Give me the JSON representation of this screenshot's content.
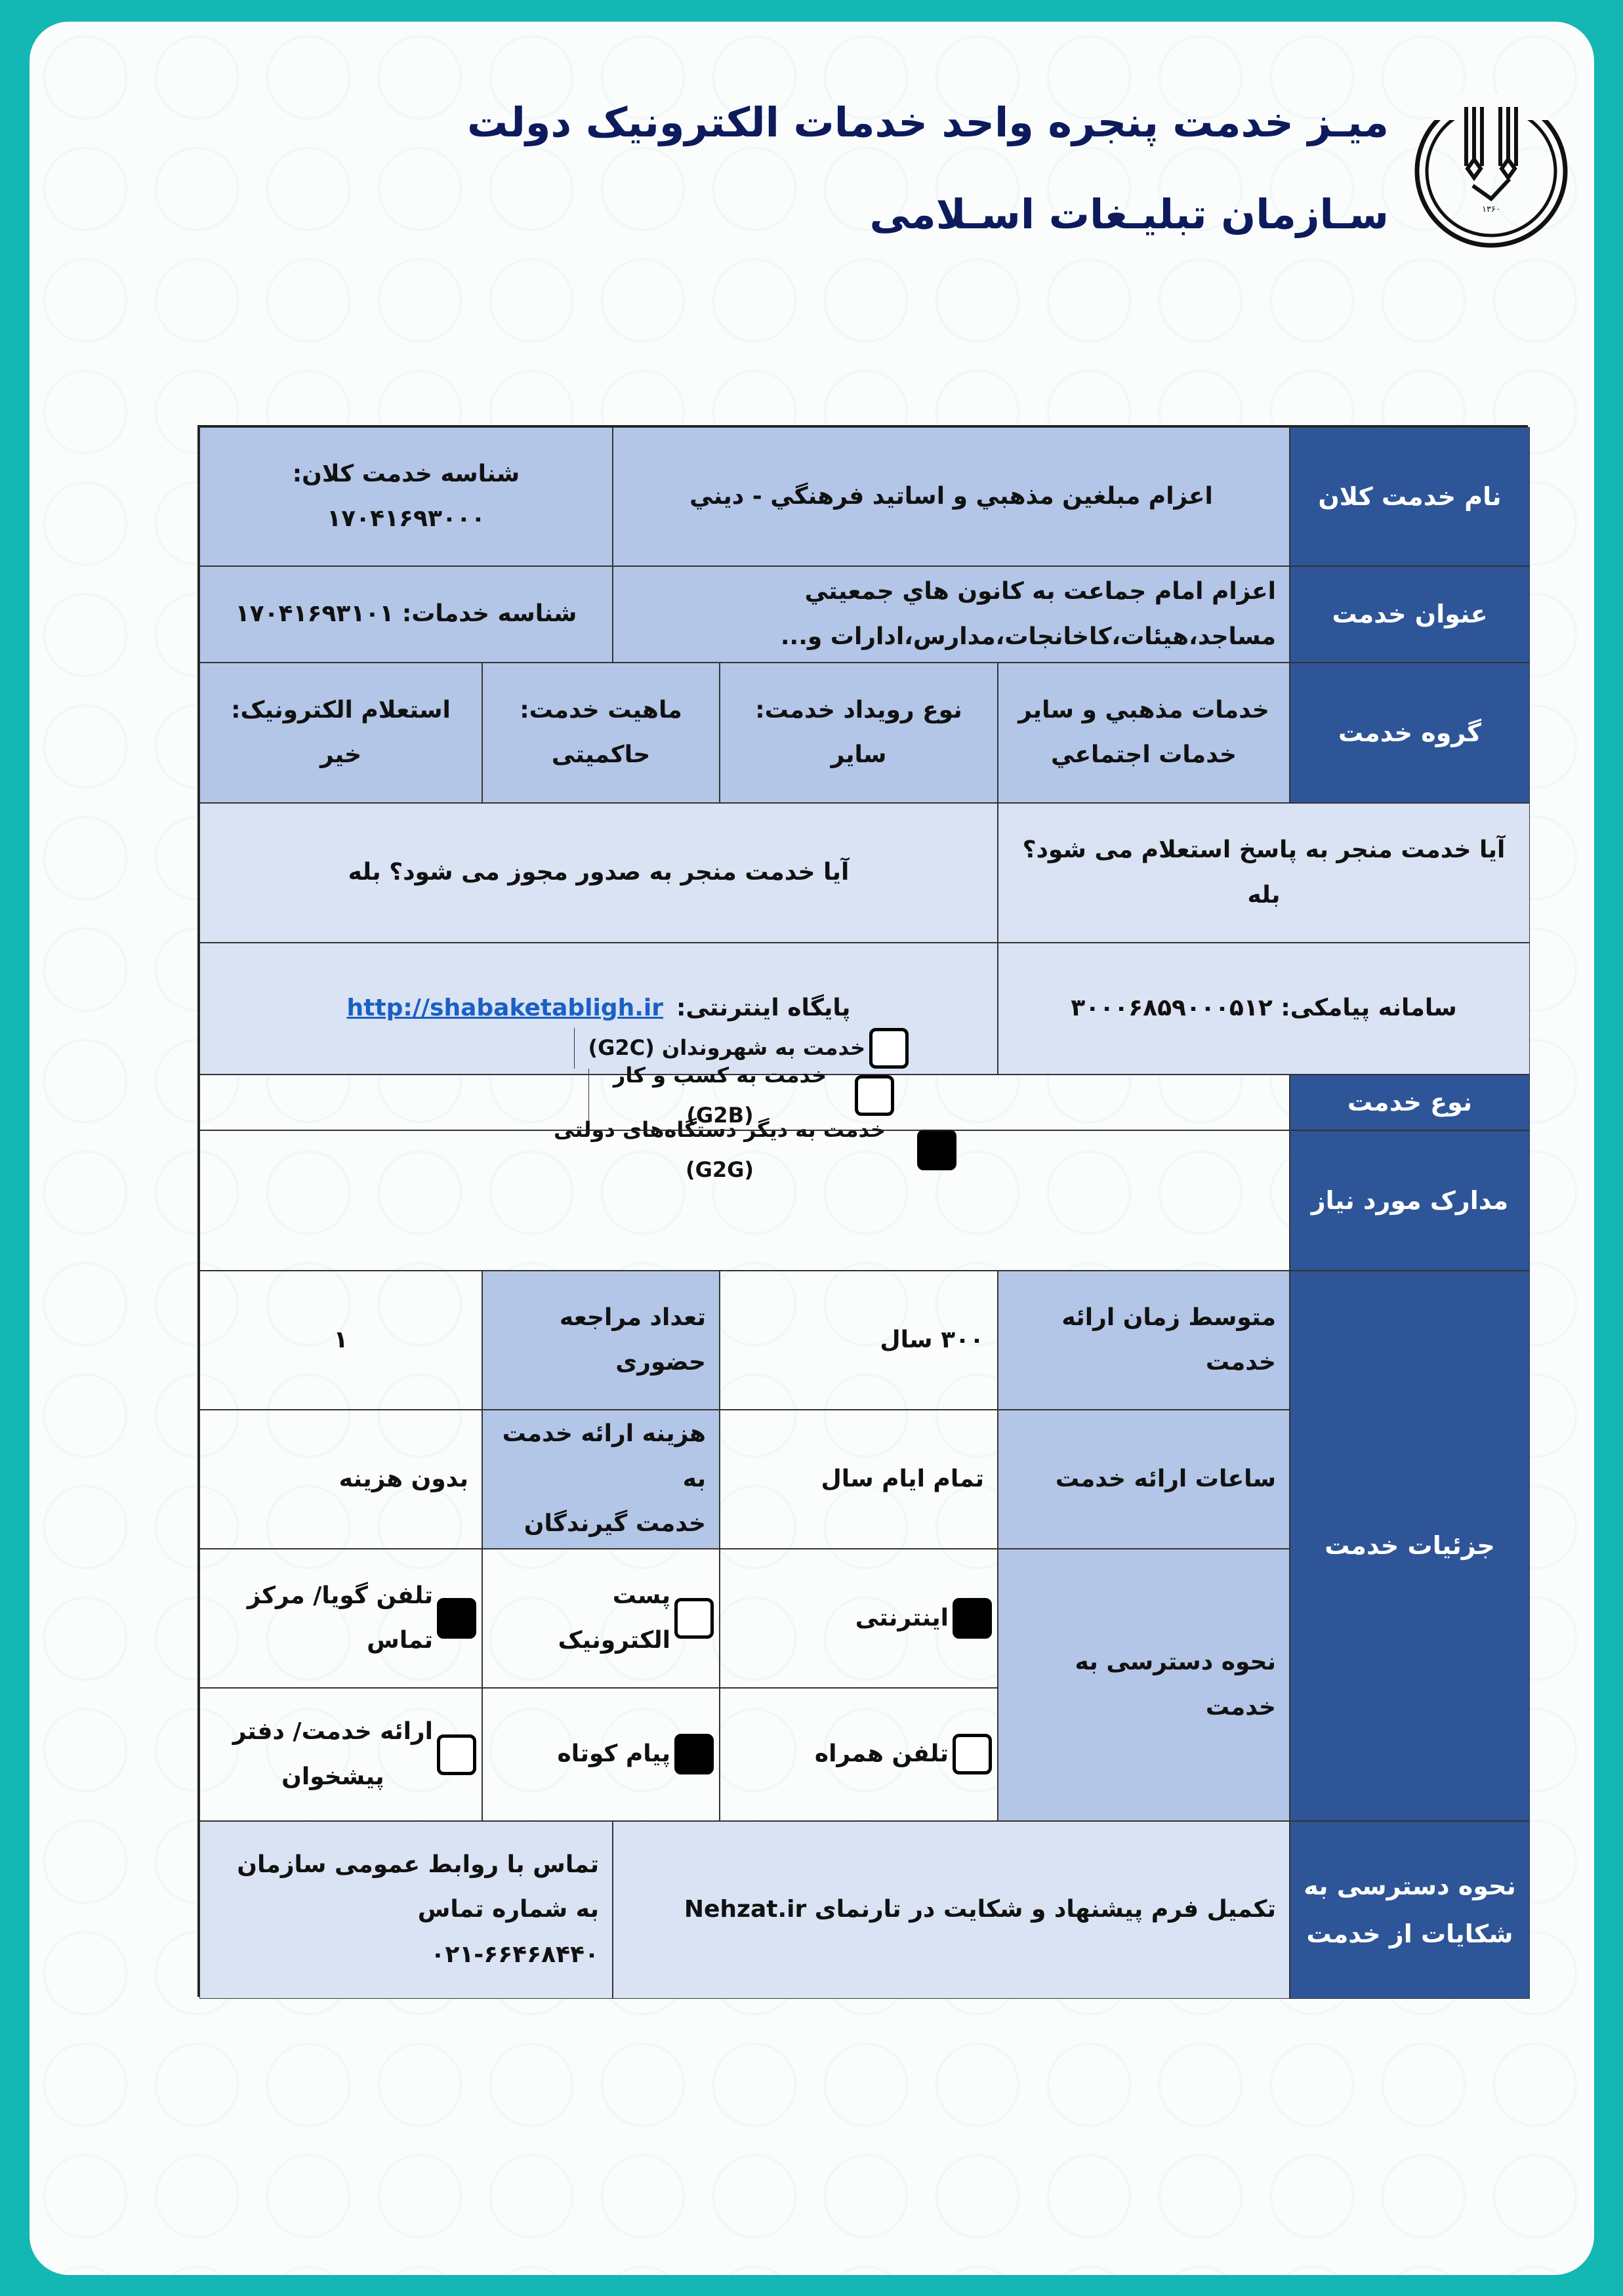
{
  "header": {
    "title": "میـز خدمت پنجره واحد خدمات الکترونیک دولت",
    "subtitle": "سـازمان تبلیـغات اسـلامی",
    "logo_year": "۱۳۶۰",
    "logo_text": "سازمان تبلیغات اسلامی"
  },
  "rows": {
    "macro_service": {
      "label": "نام خدمت کلان",
      "value": "اعزام مبلغین مذهبي و اساتيد فرهنگي - ديني",
      "id": "شناسه خدمت کلان: ۱۷۰۴۱۶۹۳۰۰۰"
    },
    "service_title": {
      "label": "عنوان خدمت",
      "value_line1": "اعزام امام جماعت به کانون هاي جمعيتي",
      "value_line2": "مساجد،هیئات،کاخانجات،مدارس،ادارات و...",
      "id": "شناسه خدمات: ۱۷۰۴۱۶۹۳۱۰۱"
    },
    "service_group": {
      "label": "گروه خدمت",
      "group_line1": "خدمات مذهبي و ساير",
      "group_line2": "خدمات اجتماعي",
      "event_label": "نوع رویداد خدمت:",
      "event_value": "سایر",
      "nature_label": "ماهیت خدمت:",
      "nature_value": "حاکمیتی",
      "inquiry_label": "استعلام الکترونیک:",
      "inquiry_value": "خیر"
    },
    "questions": {
      "q1": "آیا خدمت منجر به پاسخ استعلام می شود؟ بله",
      "q2": "آیا خدمت منجر به صدور مجوز می شود؟ بله"
    },
    "contact": {
      "sms": "سامانه پیامکی: ۳۰۰۰۶۸۵۹۰۰۰۵۱۲",
      "website_label": "پایگاه اینترنتی:",
      "website_url": "http://shabaketabligh.ir"
    },
    "service_type": {
      "label": "نوع خدمت",
      "options": [
        {
          "label": "خدمت به شهروندان (G2C)",
          "checked": false
        },
        {
          "label": "خدمت به کسب و کار (G2B)",
          "checked": false
        },
        {
          "label": "خدمت به دیگر دستگاه‌های دولتی (G2G)",
          "checked": true
        }
      ]
    },
    "documents": {
      "label": "مدارک مورد نیاز",
      "value": ""
    },
    "details": {
      "label": "جزئیات خدمت",
      "avg_time_label": "متوسط زمان ارائه خدمت",
      "avg_time_value": "۳۰۰ سال",
      "visits_label_line1": "تعداد مراجعه",
      "visits_label_line2": "حضوری",
      "visits_value": "۱",
      "hours_label": "ساعات ارائه خدمت",
      "hours_value": "تمام ایام سال",
      "cost_label_line1": "هزینه ارائه خدمت به",
      "cost_label_line2": "خدمت گیرندگان",
      "cost_value": "بدون هزینه",
      "access_label": "نحوه دسترسی به خدمت",
      "access": [
        {
          "label": "اینترنتی",
          "checked": true
        },
        {
          "label": "پست الکترونیک",
          "checked": false
        },
        {
          "label": "تلفن گویا/ مرکز تماس",
          "checked": true
        },
        {
          "label": "تلفن همراه",
          "checked": false
        },
        {
          "label": "پیام کوتاه",
          "checked": true
        },
        {
          "label_line1": "ارائه خدمت/ دفتر",
          "label_line2": "پیشخوان",
          "checked": false
        }
      ]
    },
    "complaints": {
      "label_line1": "نحوه دسترسی به",
      "label_line2": "شکایات از خدمت",
      "web": "تکمیل فرم پیشنهاد و شکایت در تارنمای Nehzat.ir",
      "phone_line1": "تماس با روابط عمومی سازمان به شماره تماس",
      "phone_line2": "۰۲۱-۶۶۴۶۸۴۴۰"
    }
  },
  "colors": {
    "frame": "#13b7b4",
    "header_cell": "#2e5597",
    "mid_cell": "#b4c6e7",
    "light_cell": "#dae3f3",
    "title": "#0d1b5c"
  }
}
